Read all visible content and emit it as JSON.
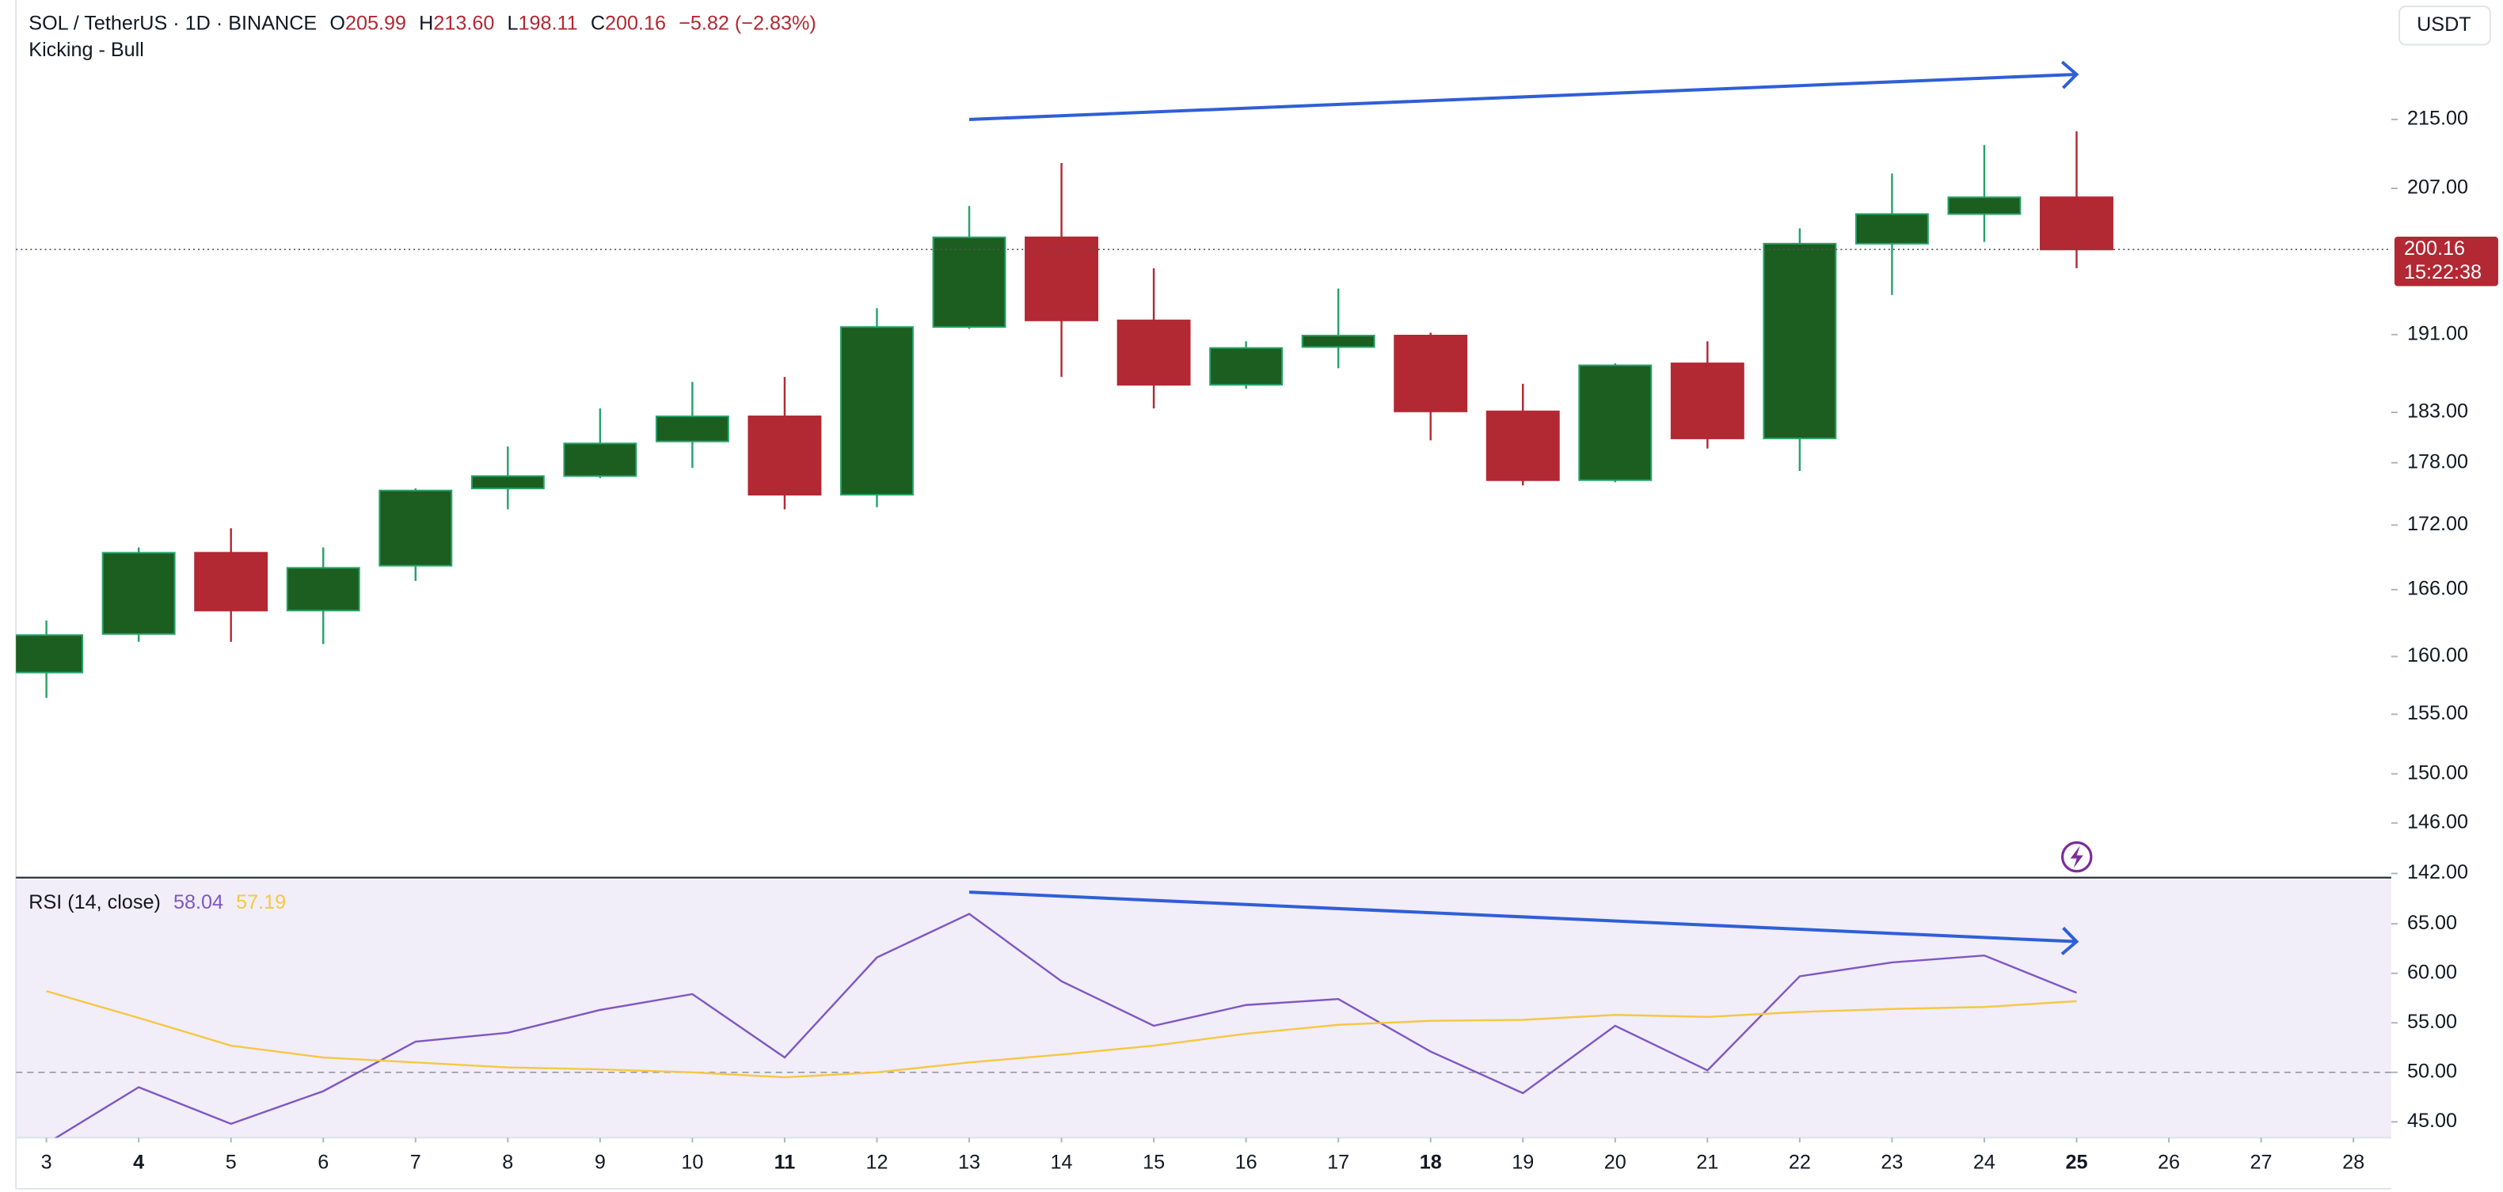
{
  "chart_data": [
    {
      "type": "candlestick",
      "title": "SOL / TetherUS · 1D · BINANCE",
      "ohlc_legend": [
        {
          "key": "O",
          "value": "205.99"
        },
        {
          "key": "H",
          "value": "213.60"
        },
        {
          "key": "L",
          "value": "198.11"
        },
        {
          "key": "C",
          "value": "200.16"
        }
      ],
      "change": "−5.82 (−2.83%)",
      "pattern_label": "Kicking - Bull",
      "currency": "USDT",
      "countdown": "15:22:38",
      "x": [
        3,
        4,
        5,
        6,
        7,
        8,
        9,
        10,
        11,
        12,
        13,
        14,
        15,
        16,
        17,
        18,
        19,
        20,
        21,
        22,
        23,
        24,
        25
      ],
      "open": [
        158.6,
        162.0,
        169.4,
        164.1,
        168.2,
        175.5,
        176.7,
        180.1,
        182.6,
        174.9,
        191.8,
        201.5,
        192.5,
        185.8,
        189.7,
        190.9,
        183.1,
        176.3,
        188.0,
        180.4,
        200.8,
        204.1,
        205.99
      ],
      "high": [
        163.2,
        169.9,
        171.7,
        169.9,
        175.5,
        179.6,
        183.4,
        186.1,
        186.6,
        193.8,
        205.0,
        209.9,
        198.1,
        190.3,
        195.9,
        191.2,
        185.9,
        188.0,
        190.3,
        202.5,
        208.7,
        212.0,
        213.6
      ],
      "low": [
        156.4,
        161.3,
        161.3,
        161.1,
        166.8,
        173.5,
        176.5,
        177.5,
        173.5,
        173.7,
        191.6,
        186.6,
        183.4,
        185.4,
        187.5,
        180.2,
        175.8,
        176.1,
        179.4,
        177.2,
        195.2,
        201.0,
        198.11
      ],
      "close": [
        161.9,
        169.4,
        164.1,
        168.0,
        175.3,
        176.7,
        179.9,
        182.6,
        174.9,
        191.8,
        201.5,
        192.5,
        185.8,
        189.6,
        190.9,
        183.1,
        176.3,
        187.8,
        180.4,
        200.8,
        204.1,
        205.99,
        200.16
      ],
      "up_color": "#1b5e20",
      "up_border_color": "#26a269",
      "down_color": "#b22833",
      "xlim": [
        2.67,
        28.41
      ],
      "xticks": [
        3,
        4,
        5,
        6,
        7,
        8,
        9,
        10,
        11,
        12,
        13,
        14,
        15,
        16,
        17,
        18,
        19,
        20,
        21,
        22,
        23,
        24,
        25,
        26,
        27,
        28
      ],
      "bold_xticks": [
        4,
        11,
        18,
        25
      ],
      "log_scale": true,
      "ylim": [
        141.8,
        229.6
      ],
      "yticks": [
        {
          "value": 215,
          "label": "215.00"
        },
        {
          "value": 207,
          "label": "207.00"
        },
        {
          "value": 191,
          "label": "191.00"
        },
        {
          "value": 183,
          "label": "183.00"
        },
        {
          "value": 178,
          "label": "178.00"
        },
        {
          "value": 172,
          "label": "172.00"
        },
        {
          "value": 166,
          "label": "166.00"
        },
        {
          "value": 160,
          "label": "160.00"
        },
        {
          "value": 155,
          "label": "155.00"
        },
        {
          "value": 150,
          "label": "150.00"
        },
        {
          "value": 146,
          "label": "146.00"
        },
        {
          "value": 142,
          "label": "142.00"
        }
      ],
      "trendline": {
        "x": [
          13,
          25
        ],
        "y": [
          215,
          220.4
        ],
        "color": "#2f5fd6"
      }
    },
    {
      "type": "line",
      "title": "RSI (14, close)",
      "x": [
        3,
        4,
        5,
        6,
        7,
        8,
        9,
        10,
        11,
        12,
        13,
        14,
        15,
        16,
        17,
        18,
        19,
        20,
        21,
        22,
        23,
        24,
        25
      ],
      "series": [
        {
          "color": "#7e57c2",
          "values": [
            42.8,
            48.5,
            44.8,
            48.1,
            53.1,
            54.0,
            56.3,
            57.9,
            51.5,
            61.6,
            66.0,
            59.2,
            54.7,
            56.8,
            57.4,
            52.1,
            47.9,
            54.7,
            50.2,
            59.7,
            61.1,
            61.8,
            58.04
          ]
        },
        {
          "color": "#f5c842",
          "values": [
            58.2,
            55.5,
            52.7,
            51.5,
            51.0,
            50.5,
            50.3,
            50.0,
            49.5,
            50.0,
            51.0,
            51.8,
            52.7,
            53.9,
            54.8,
            55.2,
            55.3,
            55.8,
            55.6,
            56.1,
            56.4,
            56.6,
            57.19
          ]
        }
      ],
      "background": "#f1edf9",
      "ylim": [
        43.4,
        69.5
      ],
      "yticks": [
        {
          "value": 65,
          "label": "65.00"
        },
        {
          "value": 60,
          "label": "60.00"
        },
        {
          "value": 55,
          "label": "55.00"
        },
        {
          "value": 50,
          "label": "50.00"
        },
        {
          "value": 45,
          "label": "45.00"
        }
      ],
      "midline": 50,
      "trendline": {
        "x": [
          13,
          25
        ],
        "y": [
          68.2,
          63.2
        ],
        "color": "#2f5fd6"
      }
    }
  ]
}
